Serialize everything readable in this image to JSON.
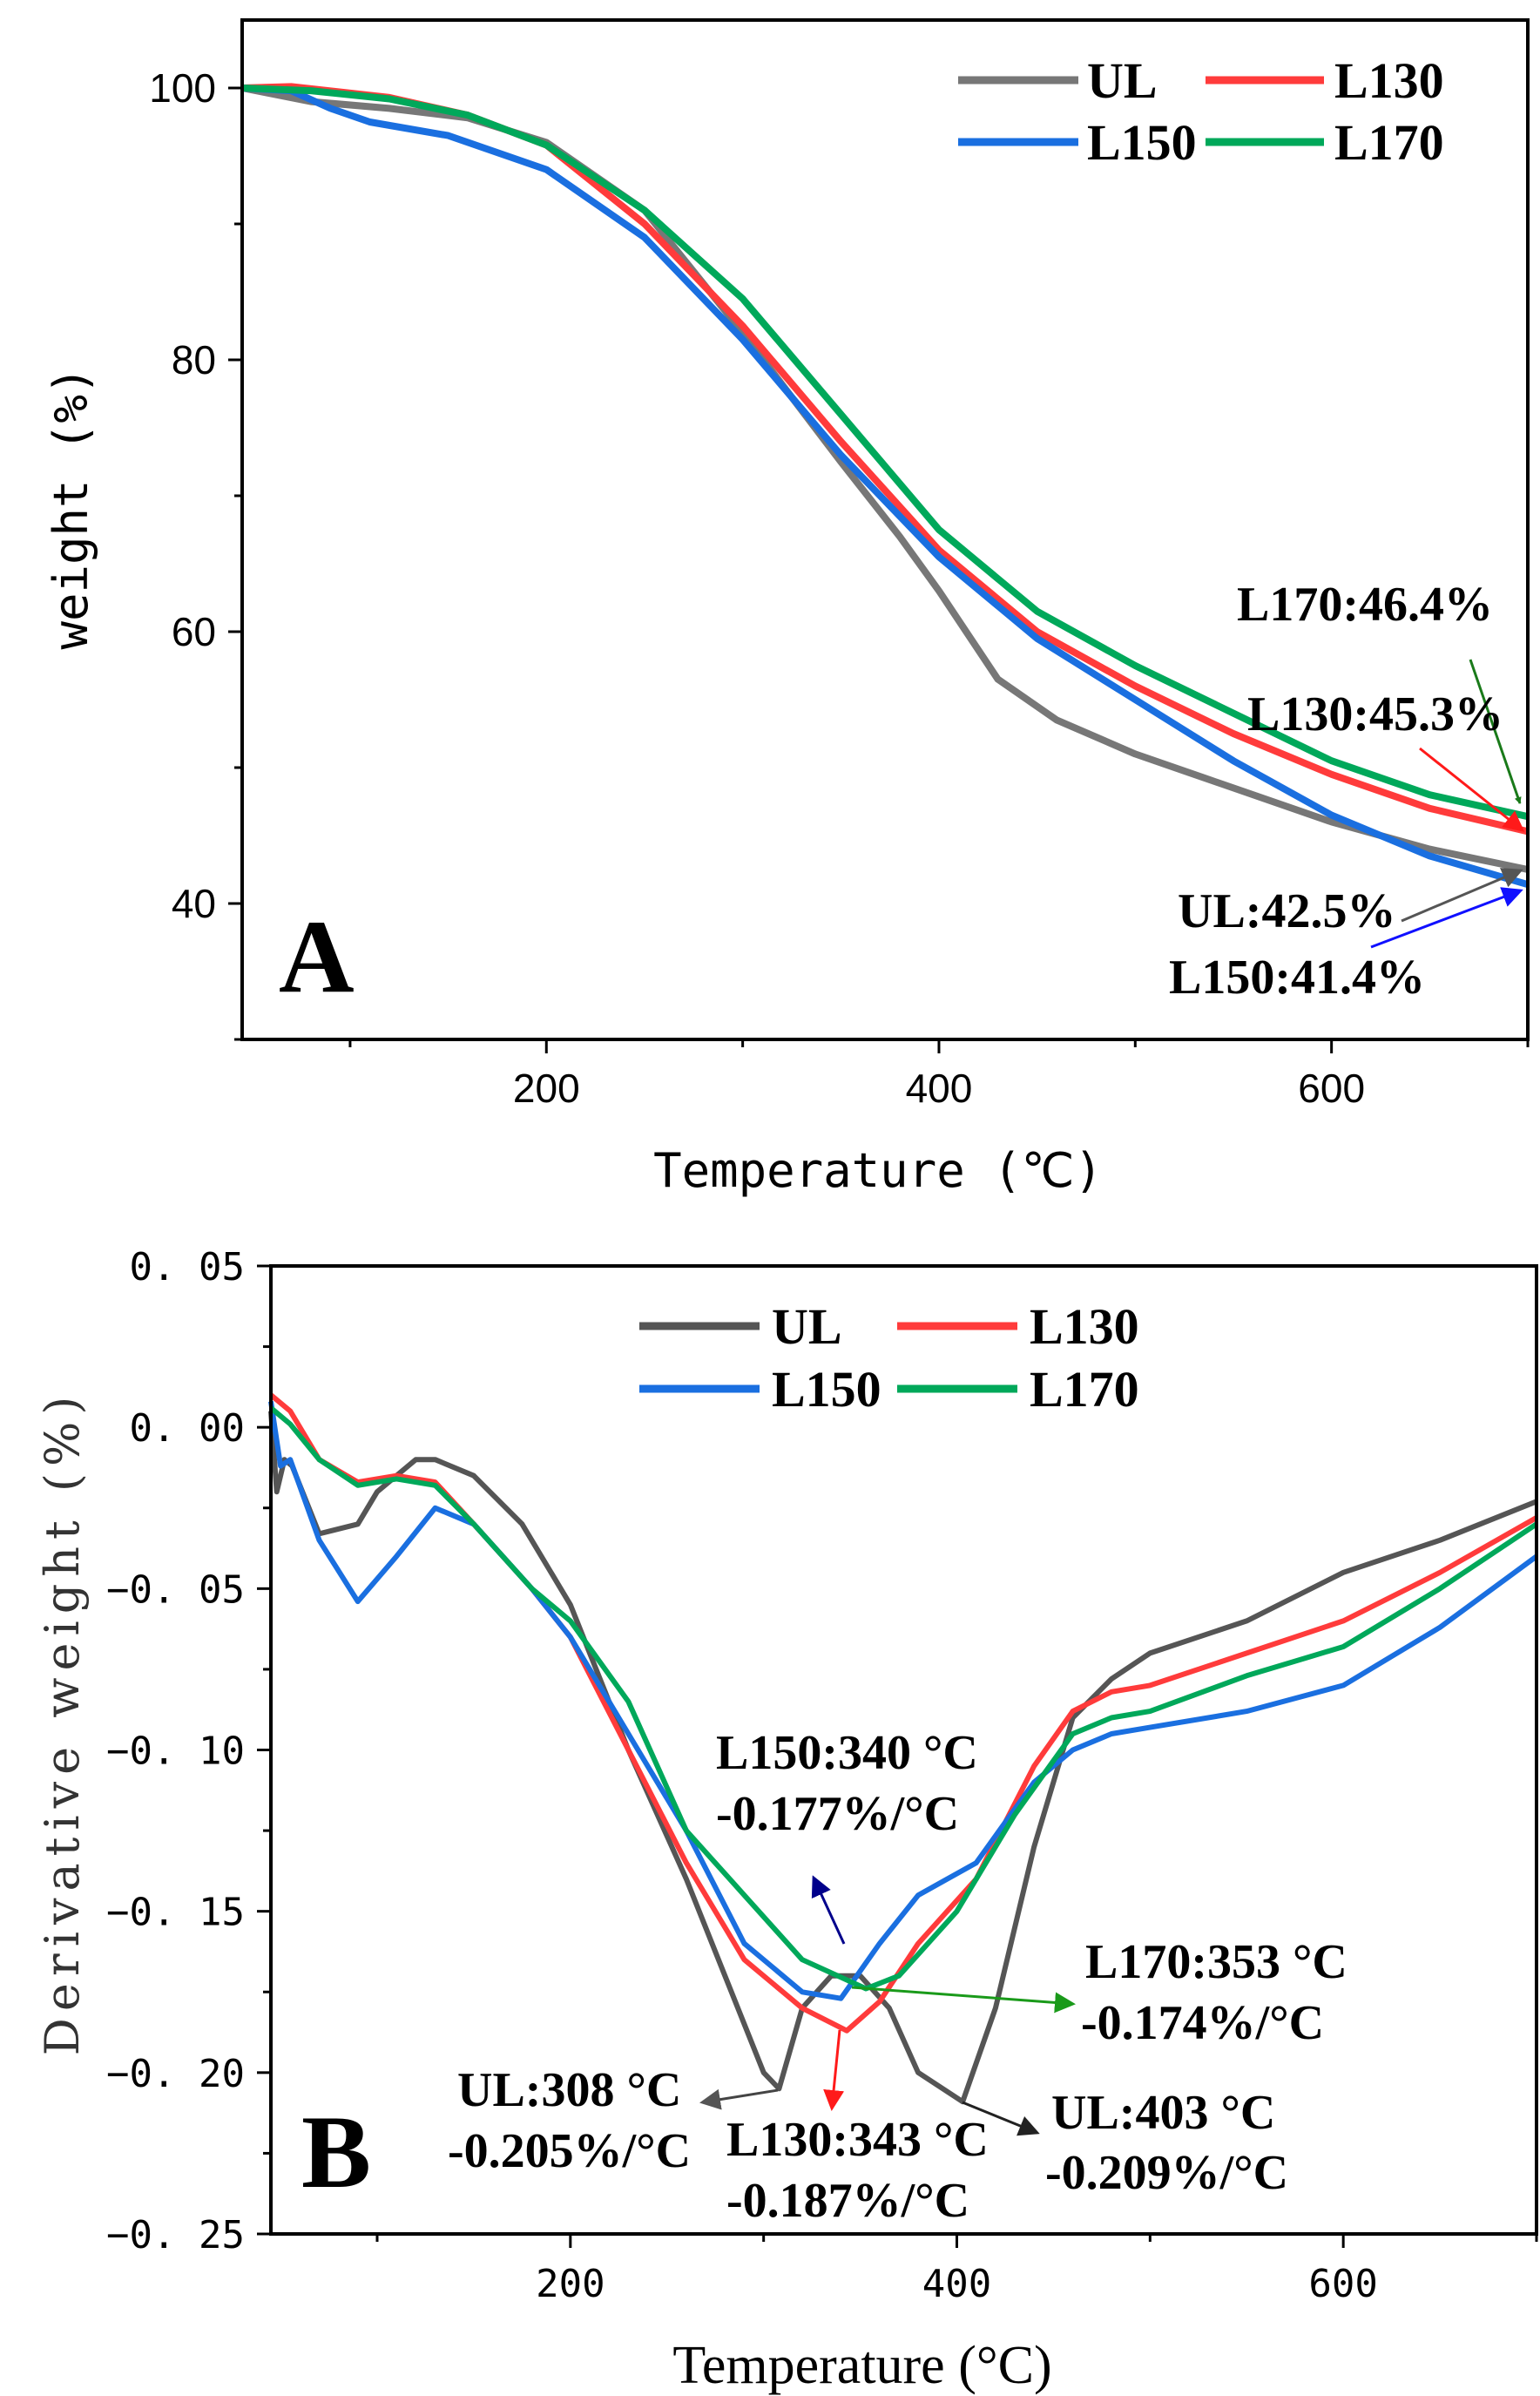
{
  "chart_data": [
    {
      "type": "line",
      "panel_label": "A",
      "title": "",
      "xlabel": "Temperature (℃)",
      "ylabel": "weight (%)",
      "xlim": [
        45,
        700
      ],
      "ylim": [
        30,
        105
      ],
      "xticks": [
        200,
        400,
        600
      ],
      "xtick_labels": [
        "200",
        "400",
        "600"
      ],
      "yticks": [
        40,
        60,
        80,
        100
      ],
      "ytick_labels": [
        "40",
        "60",
        "80",
        "100"
      ],
      "grid": false,
      "legend": {
        "placement": "top-right",
        "entries": [
          "UL",
          "L130",
          "L150",
          "L170"
        ]
      },
      "series": [
        {
          "name": "UL",
          "color": "#777777",
          "points": [
            [
              45,
              100
            ],
            [
              80,
              99
            ],
            [
              120,
              98.5
            ],
            [
              160,
              97.8
            ],
            [
              200,
              96
            ],
            [
              250,
              91
            ],
            [
              300,
              82
            ],
            [
              350,
              72.5
            ],
            [
              380,
              67
            ],
            [
              400,
              63
            ],
            [
              430,
              56.5
            ],
            [
              460,
              53.5
            ],
            [
              500,
              51
            ],
            [
              550,
              48.5
            ],
            [
              600,
              46
            ],
            [
              650,
              44
            ],
            [
              700,
              42.5
            ]
          ]
        },
        {
          "name": "L130",
          "color": "#ff3b3b",
          "points": [
            [
              45,
              100
            ],
            [
              70,
              100.1
            ],
            [
              120,
              99.3
            ],
            [
              160,
              98
            ],
            [
              200,
              95.8
            ],
            [
              250,
              90
            ],
            [
              300,
              82.5
            ],
            [
              350,
              74
            ],
            [
              400,
              66
            ],
            [
              450,
              60
            ],
            [
              500,
              56
            ],
            [
              550,
              52.5
            ],
            [
              600,
              49.5
            ],
            [
              650,
              47
            ],
            [
              700,
              45.3
            ]
          ]
        },
        {
          "name": "L150",
          "color": "#1a6fe0",
          "points": [
            [
              45,
              100
            ],
            [
              70,
              99.8
            ],
            [
              90,
              98.5
            ],
            [
              110,
              97.5
            ],
            [
              150,
              96.5
            ],
            [
              200,
              94
            ],
            [
              250,
              89
            ],
            [
              300,
              81.5
            ],
            [
              350,
              73
            ],
            [
              400,
              65.5
            ],
            [
              450,
              59.5
            ],
            [
              500,
              55
            ],
            [
              550,
              50.5
            ],
            [
              600,
              46.5
            ],
            [
              650,
              43.5
            ],
            [
              700,
              41.4
            ]
          ]
        },
        {
          "name": "L170",
          "color": "#00a85a",
          "points": [
            [
              45,
              100
            ],
            [
              80,
              99.8
            ],
            [
              120,
              99.2
            ],
            [
              160,
              98
            ],
            [
              200,
              95.8
            ],
            [
              250,
              91
            ],
            [
              300,
              84.5
            ],
            [
              350,
              76
            ],
            [
              400,
              67.5
            ],
            [
              450,
              61.5
            ],
            [
              500,
              57.5
            ],
            [
              550,
              54
            ],
            [
              600,
              50.5
            ],
            [
              650,
              48
            ],
            [
              700,
              46.4
            ]
          ]
        }
      ],
      "annotations": [
        "L170:46.4%",
        "L130:45.3%",
        "UL:42.5%",
        "L150:41.4%"
      ]
    },
    {
      "type": "line",
      "panel_label": "B",
      "title": "",
      "xlabel": "Temperature (°C)",
      "ylabel": "Derivative weight (%)",
      "xlim": [
        45,
        700
      ],
      "ylim": [
        -0.25,
        0.05
      ],
      "xticks": [
        200,
        400,
        600
      ],
      "xtick_labels": [
        "200",
        "400",
        "600"
      ],
      "yticks": [
        0.05,
        0,
        -0.05,
        -0.1,
        -0.15,
        -0.2,
        -0.25
      ],
      "ytick_labels": [
        "0. 05",
        "0. 00",
        "−0. 05",
        "−0. 10",
        "−0. 15",
        "−0. 20",
        "−0. 25"
      ],
      "grid": false,
      "legend": {
        "placement": "top-center",
        "entries": [
          "UL",
          "L130",
          "L150",
          "L170"
        ]
      },
      "series": [
        {
          "name": "UL",
          "color": "#555555",
          "points": [
            [
              45,
              0.005
            ],
            [
              48,
              -0.02
            ],
            [
              52,
              -0.01
            ],
            [
              56,
              -0.012
            ],
            [
              70,
              -0.033
            ],
            [
              90,
              -0.03
            ],
            [
              100,
              -0.02
            ],
            [
              120,
              -0.01
            ],
            [
              130,
              -0.01
            ],
            [
              150,
              -0.015
            ],
            [
              175,
              -0.03
            ],
            [
              200,
              -0.055
            ],
            [
              230,
              -0.1
            ],
            [
              260,
              -0.14
            ],
            [
              280,
              -0.17
            ],
            [
              300,
              -0.2
            ],
            [
              308,
              -0.205
            ],
            [
              320,
              -0.18
            ],
            [
              335,
              -0.17
            ],
            [
              350,
              -0.17
            ],
            [
              365,
              -0.18
            ],
            [
              380,
              -0.2
            ],
            [
              403,
              -0.209
            ],
            [
              420,
              -0.18
            ],
            [
              440,
              -0.13
            ],
            [
              460,
              -0.09
            ],
            [
              480,
              -0.078
            ],
            [
              500,
              -0.07
            ],
            [
              550,
              -0.06
            ],
            [
              600,
              -0.045
            ],
            [
              650,
              -0.035
            ],
            [
              700,
              -0.023
            ]
          ]
        },
        {
          "name": "L130",
          "color": "#ff3b3b",
          "points": [
            [
              45,
              0.01
            ],
            [
              55,
              0.005
            ],
            [
              70,
              -0.01
            ],
            [
              90,
              -0.017
            ],
            [
              110,
              -0.015
            ],
            [
              130,
              -0.017
            ],
            [
              150,
              -0.03
            ],
            [
              180,
              -0.05
            ],
            [
              200,
              -0.065
            ],
            [
              230,
              -0.1
            ],
            [
              260,
              -0.135
            ],
            [
              290,
              -0.165
            ],
            [
              320,
              -0.18
            ],
            [
              343,
              -0.187
            ],
            [
              360,
              -0.178
            ],
            [
              380,
              -0.16
            ],
            [
              410,
              -0.14
            ],
            [
              440,
              -0.105
            ],
            [
              460,
              -0.088
            ],
            [
              480,
              -0.082
            ],
            [
              500,
              -0.08
            ],
            [
              550,
              -0.07
            ],
            [
              600,
              -0.06
            ],
            [
              650,
              -0.045
            ],
            [
              700,
              -0.028
            ]
          ]
        },
        {
          "name": "L150",
          "color": "#1a6fe0",
          "points": [
            [
              45,
              0.008
            ],
            [
              50,
              -0.012
            ],
            [
              55,
              -0.01
            ],
            [
              70,
              -0.035
            ],
            [
              90,
              -0.054
            ],
            [
              110,
              -0.04
            ],
            [
              130,
              -0.025
            ],
            [
              150,
              -0.03
            ],
            [
              180,
              -0.05
            ],
            [
              200,
              -0.065
            ],
            [
              230,
              -0.095
            ],
            [
              260,
              -0.125
            ],
            [
              290,
              -0.16
            ],
            [
              320,
              -0.175
            ],
            [
              340,
              -0.177
            ],
            [
              360,
              -0.16
            ],
            [
              380,
              -0.145
            ],
            [
              410,
              -0.135
            ],
            [
              440,
              -0.11
            ],
            [
              460,
              -0.1
            ],
            [
              480,
              -0.095
            ],
            [
              500,
              -0.093
            ],
            [
              550,
              -0.088
            ],
            [
              600,
              -0.08
            ],
            [
              650,
              -0.062
            ],
            [
              700,
              -0.04
            ]
          ]
        },
        {
          "name": "L170",
          "color": "#00a85a",
          "points": [
            [
              45,
              0.006
            ],
            [
              55,
              0.001
            ],
            [
              70,
              -0.01
            ],
            [
              90,
              -0.018
            ],
            [
              110,
              -0.016
            ],
            [
              130,
              -0.018
            ],
            [
              150,
              -0.03
            ],
            [
              180,
              -0.05
            ],
            [
              200,
              -0.06
            ],
            [
              230,
              -0.085
            ],
            [
              260,
              -0.125
            ],
            [
              290,
              -0.145
            ],
            [
              320,
              -0.165
            ],
            [
              353,
              -0.174
            ],
            [
              370,
              -0.17
            ],
            [
              400,
              -0.15
            ],
            [
              430,
              -0.12
            ],
            [
              460,
              -0.095
            ],
            [
              480,
              -0.09
            ],
            [
              500,
              -0.088
            ],
            [
              550,
              -0.077
            ],
            [
              600,
              -0.068
            ],
            [
              650,
              -0.05
            ],
            [
              700,
              -0.03
            ]
          ]
        }
      ],
      "annotations": [
        {
          "line1": "L150:340 °C",
          "line2": "-0.177%/°C"
        },
        {
          "line1": "L170:353 °C",
          "line2": "-0.174%/°C"
        },
        {
          "line1": "UL:308 °C",
          "line2": "-0.205%/°C"
        },
        {
          "line1": "L130:343 °C",
          "line2": "-0.187%/°C"
        },
        {
          "line1": "UL:403 °C",
          "line2": "-0.209%/°C"
        }
      ]
    }
  ]
}
